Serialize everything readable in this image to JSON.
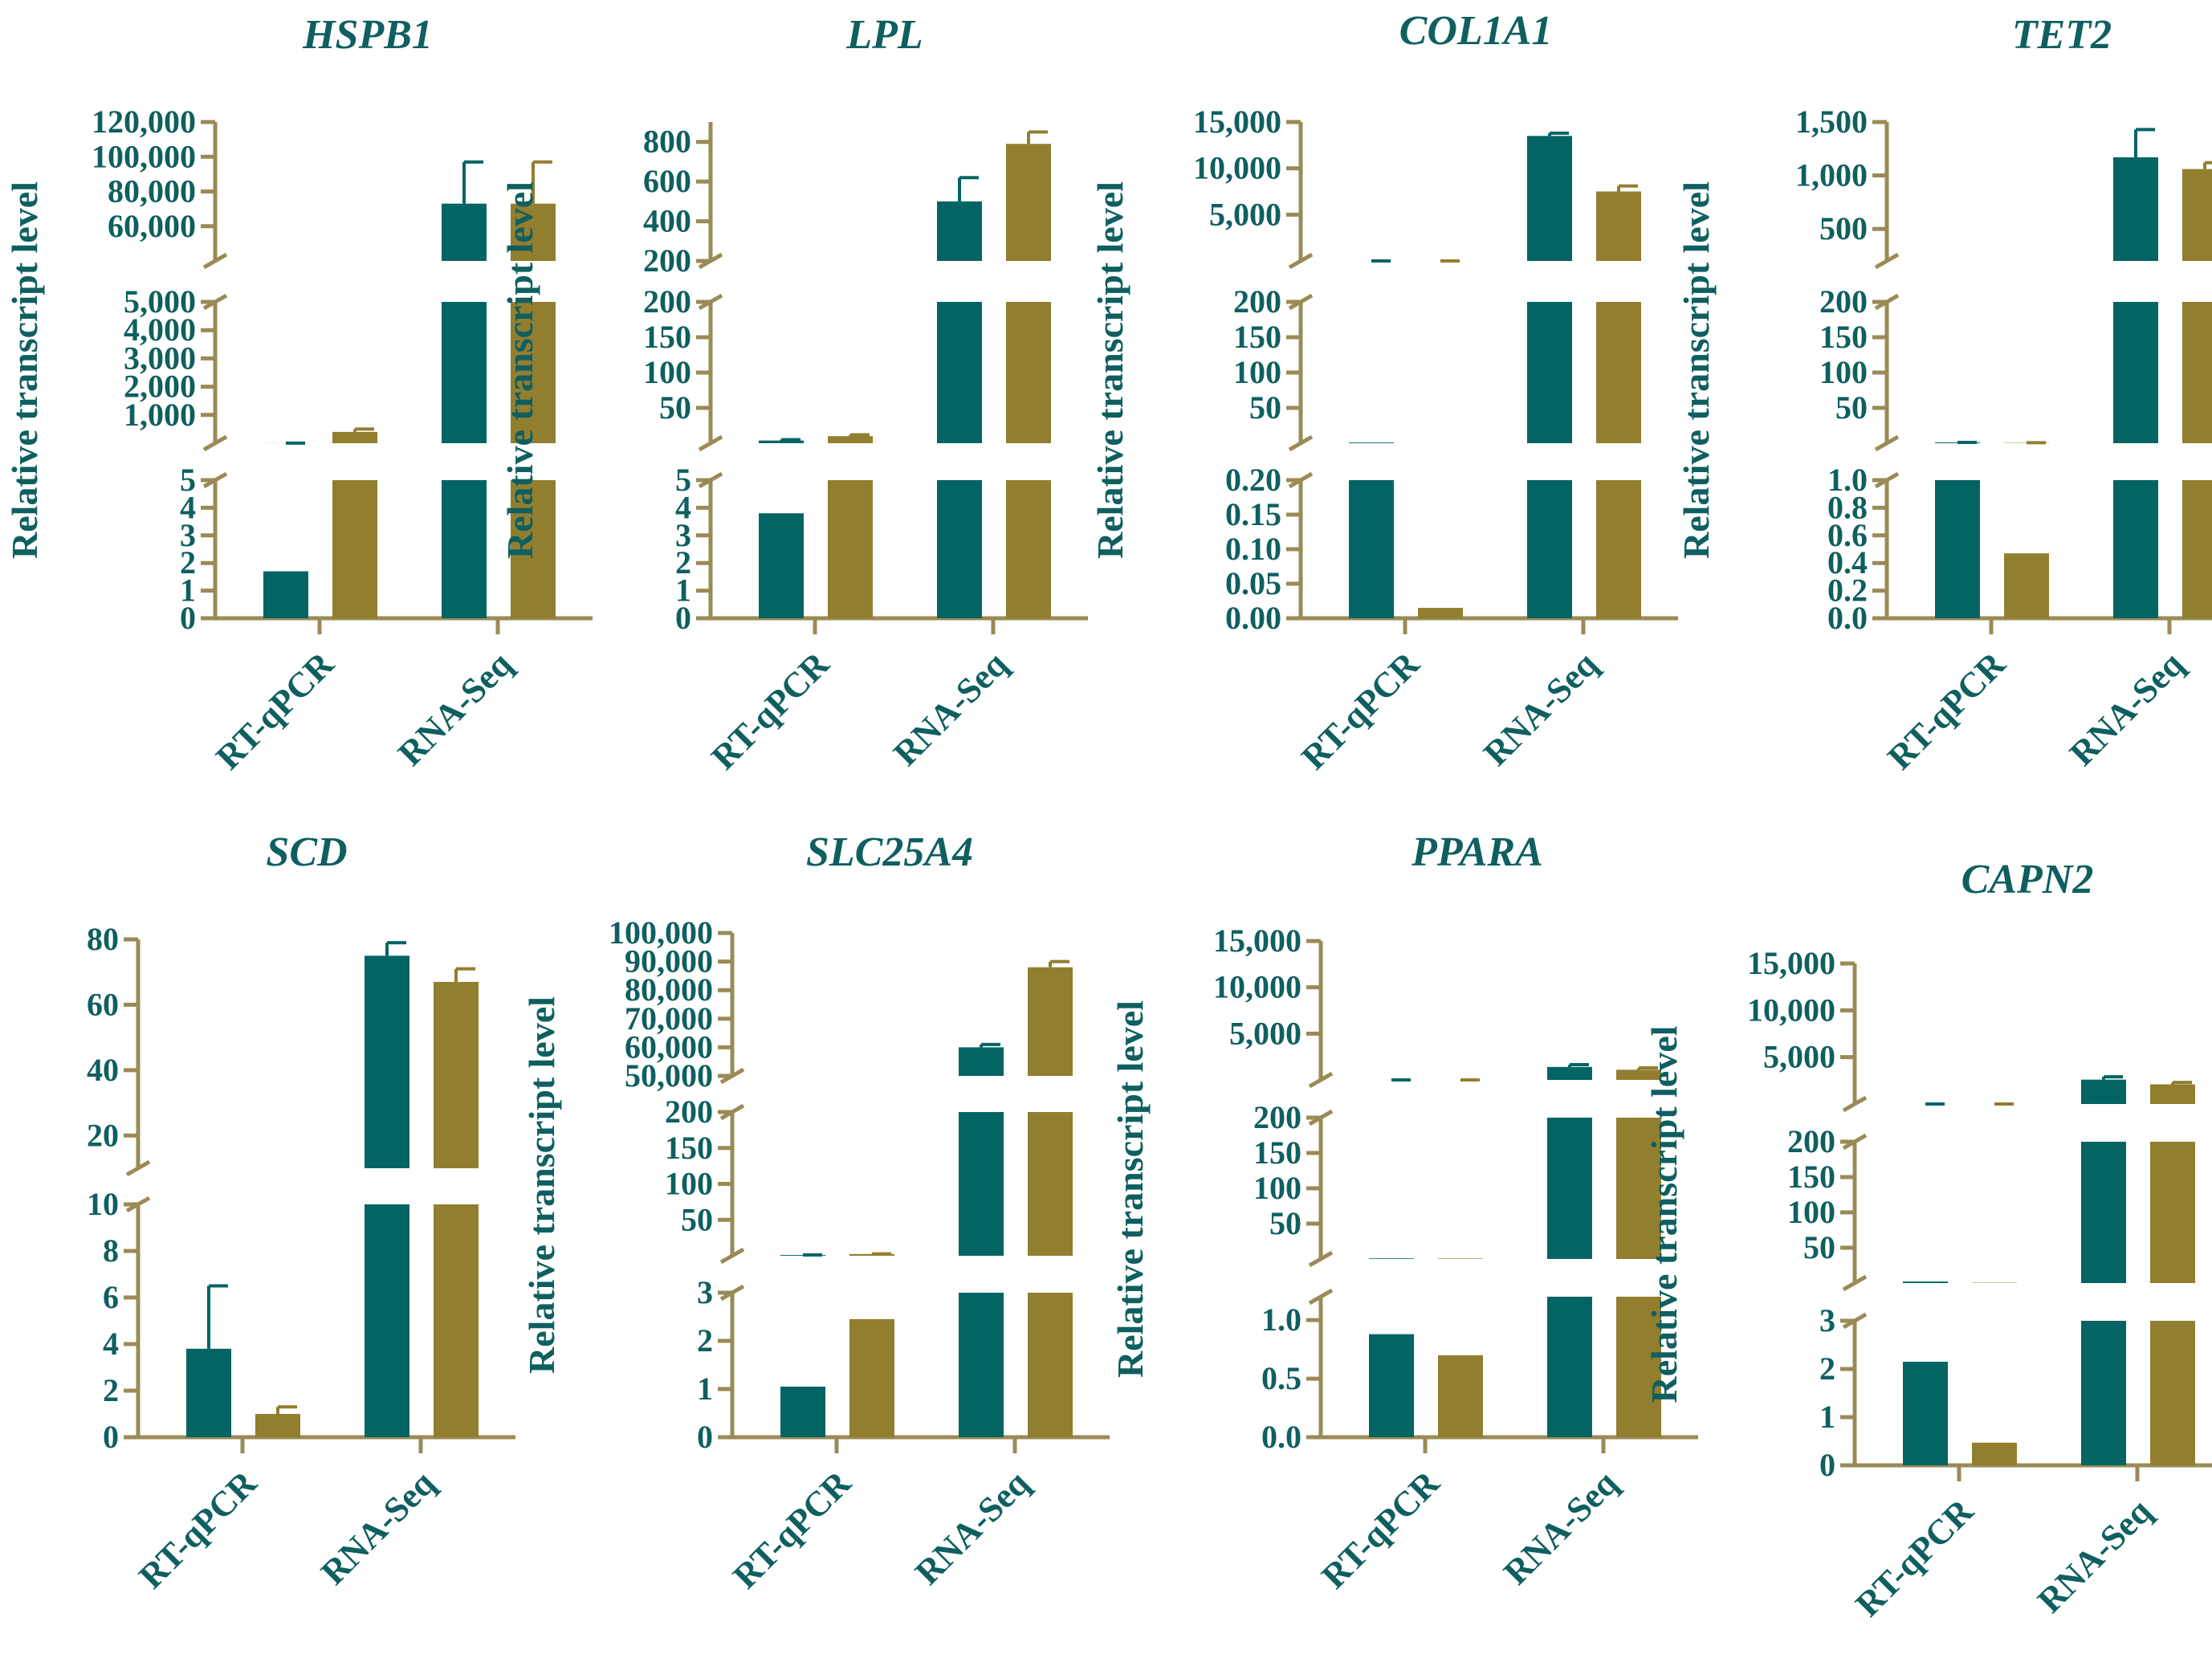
{
  "colors": {
    "rt_qpcr_bar": "#036464",
    "rna_seq_bar": "#927e2f",
    "axis": "#9a8a55",
    "text": "#0f5f60"
  },
  "chart_data": [
    {
      "type": "bar",
      "title": "HSPB1",
      "ylabel": "Relative transcript level",
      "categories": [
        "RT-qPCR",
        "RNA-Seq"
      ],
      "broken_axis": true,
      "segments": [
        {
          "ylim": [
            0,
            5
          ],
          "ticks": [
            0,
            1,
            2,
            3,
            4,
            5
          ],
          "tick_labels": [
            "0",
            "1",
            "2",
            "3",
            "4",
            "5"
          ]
        },
        {
          "ylim": [
            0,
            5000
          ],
          "ticks": [
            1000,
            2000,
            3000,
            4000,
            5000
          ],
          "tick_labels": [
            "1,000",
            "2,000",
            "3,000",
            "4,000",
            "5,000"
          ]
        },
        {
          "ylim": [
            40000,
            120000
          ],
          "ticks": [
            60000,
            80000,
            100000,
            120000
          ],
          "tick_labels": [
            "60,000",
            "80,000",
            "100,000",
            "120,000"
          ]
        }
      ],
      "series": [
        {
          "values": [
            1.7,
            73000
          ],
          "errors": [
            0.6,
            24000
          ]
        },
        {
          "values": [
            400,
            73000
          ],
          "errors": [
            100,
            24000
          ]
        }
      ]
    },
    {
      "type": "bar",
      "title": "LPL",
      "ylabel": "Relative transcript level",
      "categories": [
        "RT-qPCR",
        "RNA-Seq"
      ],
      "broken_axis": true,
      "segments": [
        {
          "ylim": [
            0,
            5
          ],
          "ticks": [
            0,
            1,
            2,
            3,
            4,
            5
          ],
          "tick_labels": [
            "0",
            "1",
            "2",
            "3",
            "4",
            "5"
          ]
        },
        {
          "ylim": [
            0,
            200
          ],
          "ticks": [
            50,
            100,
            150,
            200
          ],
          "tick_labels": [
            "50",
            "100",
            "150",
            "200"
          ]
        },
        {
          "ylim": [
            200,
            900
          ],
          "ticks": [
            200,
            400,
            600,
            800
          ],
          "tick_labels": [
            "200",
            "400",
            "600",
            "800"
          ]
        }
      ],
      "series": [
        {
          "values": [
            3.8,
            500
          ],
          "errors": [
            1.2,
            120
          ]
        },
        {
          "values": [
            10,
            790
          ],
          "errors": [
            2,
            60
          ]
        }
      ]
    },
    {
      "type": "bar",
      "title": "COL1A1",
      "ylabel": "Relative transcript level",
      "categories": [
        "RT-qPCR",
        "RNA-Seq"
      ],
      "broken_axis": true,
      "segments": [
        {
          "ylim": [
            0,
            0.2
          ],
          "ticks": [
            0,
            0.05,
            0.1,
            0.15,
            0.2
          ],
          "tick_labels": [
            "0.00",
            "0.05",
            "0.10",
            "0.15",
            "0.20"
          ]
        },
        {
          "ylim": [
            0,
            200
          ],
          "ticks": [
            50,
            100,
            150,
            200
          ],
          "tick_labels": [
            "50",
            "100",
            "150",
            "200"
          ]
        },
        {
          "ylim": [
            0,
            15000
          ],
          "ticks": [
            5000,
            10000,
            15000
          ],
          "tick_labels": [
            "5,000",
            "10,000",
            "15,000"
          ]
        }
      ],
      "series": [
        {
          "values": [
            1,
            13500
          ],
          "errors": [
            0.2,
            300
          ]
        },
        {
          "values": [
            0.015,
            7500
          ],
          "errors": [
            0.005,
            600
          ]
        }
      ]
    },
    {
      "type": "bar",
      "title": "TET2",
      "ylabel": "Relative transcript level",
      "categories": [
        "RT-qPCR",
        "RNA-Seq"
      ],
      "broken_axis": true,
      "segments": [
        {
          "ylim": [
            0,
            1.0
          ],
          "ticks": [
            0,
            0.2,
            0.4,
            0.6,
            0.8,
            1.0
          ],
          "tick_labels": [
            "0.0",
            "0.2",
            "0.4",
            "0.6",
            "0.8",
            "1.0"
          ]
        },
        {
          "ylim": [
            0,
            200
          ],
          "ticks": [
            50,
            100,
            150,
            200
          ],
          "tick_labels": [
            "50",
            "100",
            "150",
            "200"
          ]
        },
        {
          "ylim": [
            200,
            1500
          ],
          "ticks": [
            500,
            1000,
            1500
          ],
          "tick_labels": [
            "500",
            "1,000",
            "1,500"
          ]
        }
      ],
      "series": [
        {
          "values": [
            1.1,
            1170
          ],
          "errors": [
            0.1,
            260
          ]
        },
        {
          "values": [
            0.47,
            1060
          ],
          "errors": [
            0.17,
            60
          ]
        }
      ]
    },
    {
      "type": "bar",
      "title": "SCD",
      "ylabel": "Relative transcript level",
      "categories": [
        "RT-qPCR",
        "RNA-Seq"
      ],
      "broken_axis": true,
      "segments": [
        {
          "ylim": [
            0,
            10
          ],
          "ticks": [
            0,
            2,
            4,
            6,
            8,
            10
          ],
          "tick_labels": [
            "0",
            "2",
            "4",
            "6",
            "8",
            "10"
          ]
        },
        {
          "ylim": [
            10,
            80
          ],
          "ticks": [
            20,
            40,
            60,
            80
          ],
          "tick_labels": [
            "20",
            "40",
            "60",
            "80"
          ]
        }
      ],
      "series": [
        {
          "values": [
            3.8,
            75
          ],
          "errors": [
            2.7,
            4
          ]
        },
        {
          "values": [
            1.0,
            67
          ],
          "errors": [
            0.3,
            4
          ]
        }
      ]
    },
    {
      "type": "bar",
      "title": "SLC25A4",
      "ylabel": "Relative transcript level",
      "categories": [
        "RT-qPCR",
        "RNA-Seq"
      ],
      "broken_axis": true,
      "segments": [
        {
          "ylim": [
            0,
            3
          ],
          "ticks": [
            0,
            1,
            2,
            3
          ],
          "tick_labels": [
            "0",
            "1",
            "2",
            "3"
          ]
        },
        {
          "ylim": [
            0,
            200
          ],
          "ticks": [
            50,
            100,
            150,
            200
          ],
          "tick_labels": [
            "50",
            "100",
            "150",
            "200"
          ]
        },
        {
          "ylim": [
            50000,
            100000
          ],
          "ticks": [
            50000,
            60000,
            70000,
            80000,
            90000,
            100000
          ],
          "tick_labels": [
            "50,000",
            "60,000",
            "70,000",
            "80,000",
            "90,000",
            "100,000"
          ]
        }
      ],
      "series": [
        {
          "values": [
            1.05,
            60000
          ],
          "errors": [
            0.1,
            1000
          ]
        },
        {
          "values": [
            2.45,
            88000
          ],
          "errors": [
            0.25,
            2000
          ]
        }
      ]
    },
    {
      "type": "bar",
      "title": "PPARA",
      "ylabel": "Relative transcript level",
      "categories": [
        "RT-qPCR",
        "RNA-Seq"
      ],
      "broken_axis": true,
      "segments": [
        {
          "ylim": [
            0,
            1.2
          ],
          "ticks": [
            0,
            0.5,
            1.0
          ],
          "tick_labels": [
            "0.0",
            "0.5",
            "1.0"
          ]
        },
        {
          "ylim": [
            0,
            200
          ],
          "ticks": [
            50,
            100,
            150,
            200
          ],
          "tick_labels": [
            "50",
            "100",
            "150",
            "200"
          ]
        },
        {
          "ylim": [
            0,
            15000
          ],
          "ticks": [
            5000,
            10000,
            15000
          ],
          "tick_labels": [
            "5,000",
            "10,000",
            "15,000"
          ]
        }
      ],
      "series": [
        {
          "values": [
            0.88,
            1400
          ],
          "errors": [
            0.32,
            250
          ]
        },
        {
          "values": [
            0.7,
            1100
          ],
          "errors": [
            0.14,
            200
          ]
        }
      ]
    },
    {
      "type": "bar",
      "title": "CAPN2",
      "ylabel": "Relative transcript level",
      "categories": [
        "RT-qPCR",
        "RNA-Seq"
      ],
      "broken_axis": true,
      "segments": [
        {
          "ylim": [
            0,
            3
          ],
          "ticks": [
            0,
            1,
            2,
            3
          ],
          "tick_labels": [
            "0",
            "1",
            "2",
            "3"
          ]
        },
        {
          "ylim": [
            0,
            200
          ],
          "ticks": [
            50,
            100,
            150,
            200
          ],
          "tick_labels": [
            "50",
            "100",
            "150",
            "200"
          ]
        },
        {
          "ylim": [
            0,
            15000
          ],
          "ticks": [
            5000,
            10000,
            15000
          ],
          "tick_labels": [
            "5,000",
            "10,000",
            "15,000"
          ]
        }
      ],
      "series": [
        {
          "values": [
            2.15,
            2600
          ],
          "errors": [
            0.8,
            300
          ]
        },
        {
          "values": [
            0.47,
            2100
          ],
          "errors": [
            0.1,
            200
          ]
        }
      ]
    }
  ]
}
